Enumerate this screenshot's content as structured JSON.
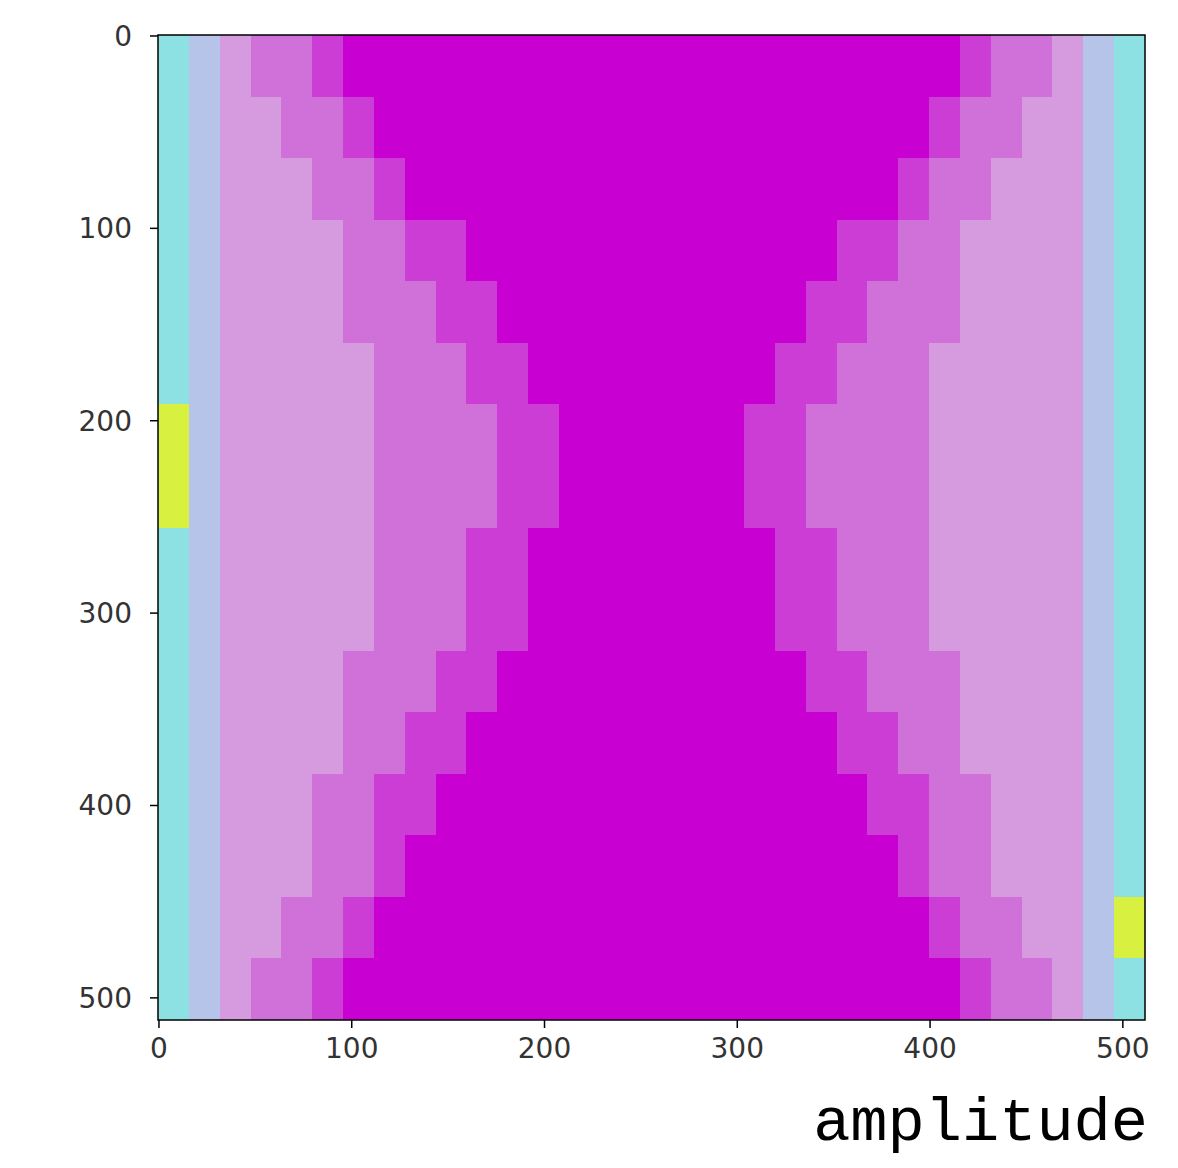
{
  "chart_data": {
    "type": "heatmap",
    "caption": "amplitude",
    "xlim": [
      -0.5,
      511.5
    ],
    "ylim": [
      511.5,
      -0.5
    ],
    "xticks": [
      0,
      100,
      200,
      300,
      400,
      500
    ],
    "yticks": [
      0,
      100,
      200,
      300,
      400,
      500
    ],
    "cells": [
      [
        8,
        5,
        3,
        2,
        2,
        1,
        0,
        0,
        0,
        0,
        0,
        0,
        0,
        0,
        0,
        0,
        0,
        0,
        0,
        0,
        0,
        0,
        0,
        0,
        0,
        0,
        1,
        2,
        2,
        3,
        5,
        8
      ],
      [
        8,
        5,
        3,
        3,
        2,
        2,
        1,
        0,
        0,
        0,
        0,
        0,
        0,
        0,
        0,
        0,
        0,
        0,
        0,
        0,
        0,
        0,
        0,
        0,
        0,
        1,
        2,
        2,
        3,
        3,
        5,
        8
      ],
      [
        8,
        5,
        3,
        3,
        3,
        2,
        2,
        1,
        0,
        0,
        0,
        0,
        0,
        0,
        0,
        0,
        0,
        0,
        0,
        0,
        0,
        0,
        0,
        0,
        1,
        2,
        2,
        3,
        3,
        3,
        5,
        8
      ],
      [
        8,
        5,
        3,
        3,
        3,
        3,
        2,
        2,
        1,
        1,
        0,
        0,
        0,
        0,
        0,
        0,
        0,
        0,
        0,
        0,
        0,
        0,
        1,
        1,
        2,
        2,
        3,
        3,
        3,
        3,
        5,
        8
      ],
      [
        8,
        5,
        3,
        3,
        3,
        3,
        2,
        2,
        2,
        1,
        1,
        0,
        0,
        0,
        0,
        0,
        0,
        0,
        0,
        0,
        0,
        1,
        1,
        2,
        2,
        2,
        3,
        3,
        3,
        3,
        5,
        8
      ],
      [
        8,
        5,
        3,
        3,
        3,
        3,
        3,
        2,
        2,
        2,
        1,
        1,
        0,
        0,
        0,
        0,
        0,
        0,
        0,
        0,
        1,
        1,
        2,
        2,
        2,
        3,
        3,
        3,
        3,
        3,
        5,
        8
      ],
      [
        9,
        5,
        3,
        3,
        3,
        3,
        3,
        2,
        2,
        2,
        2,
        1,
        1,
        0,
        0,
        0,
        0,
        0,
        0,
        1,
        1,
        2,
        2,
        2,
        2,
        3,
        3,
        3,
        3,
        3,
        5,
        8
      ],
      [
        9,
        5,
        3,
        3,
        3,
        3,
        3,
        2,
        2,
        2,
        2,
        1,
        1,
        0,
        0,
        0,
        0,
        0,
        0,
        1,
        1,
        2,
        2,
        2,
        2,
        3,
        3,
        3,
        3,
        3,
        5,
        8
      ],
      [
        8,
        5,
        3,
        3,
        3,
        3,
        3,
        2,
        2,
        2,
        1,
        1,
        0,
        0,
        0,
        0,
        0,
        0,
        0,
        0,
        1,
        1,
        2,
        2,
        2,
        3,
        3,
        3,
        3,
        3,
        5,
        8
      ],
      [
        8,
        5,
        3,
        3,
        3,
        3,
        3,
        2,
        2,
        2,
        1,
        1,
        0,
        0,
        0,
        0,
        0,
        0,
        0,
        0,
        1,
        1,
        2,
        2,
        2,
        3,
        3,
        3,
        3,
        3,
        5,
        8
      ],
      [
        8,
        5,
        3,
        3,
        3,
        3,
        2,
        2,
        2,
        1,
        1,
        0,
        0,
        0,
        0,
        0,
        0,
        0,
        0,
        0,
        0,
        1,
        1,
        2,
        2,
        2,
        3,
        3,
        3,
        3,
        5,
        8
      ],
      [
        8,
        5,
        3,
        3,
        3,
        3,
        2,
        2,
        1,
        1,
        0,
        0,
        0,
        0,
        0,
        0,
        0,
        0,
        0,
        0,
        0,
        0,
        1,
        1,
        2,
        2,
        3,
        3,
        3,
        3,
        5,
        8
      ],
      [
        8,
        5,
        3,
        3,
        3,
        2,
        2,
        1,
        1,
        0,
        0,
        0,
        0,
        0,
        0,
        0,
        0,
        0,
        0,
        0,
        0,
        0,
        0,
        1,
        1,
        2,
        2,
        3,
        3,
        3,
        5,
        8
      ],
      [
        8,
        5,
        3,
        3,
        3,
        2,
        2,
        1,
        0,
        0,
        0,
        0,
        0,
        0,
        0,
        0,
        0,
        0,
        0,
        0,
        0,
        0,
        0,
        0,
        1,
        2,
        2,
        3,
        3,
        3,
        5,
        8
      ],
      [
        8,
        5,
        3,
        3,
        2,
        2,
        1,
        0,
        0,
        0,
        0,
        0,
        0,
        0,
        0,
        0,
        0,
        0,
        0,
        0,
        0,
        0,
        0,
        0,
        0,
        1,
        2,
        2,
        3,
        3,
        5,
        9
      ],
      [
        8,
        5,
        3,
        2,
        2,
        1,
        0,
        0,
        0,
        0,
        0,
        0,
        0,
        0,
        0,
        0,
        0,
        0,
        0,
        0,
        0,
        0,
        0,
        0,
        0,
        0,
        1,
        2,
        2,
        3,
        5,
        8
      ]
    ]
  }
}
